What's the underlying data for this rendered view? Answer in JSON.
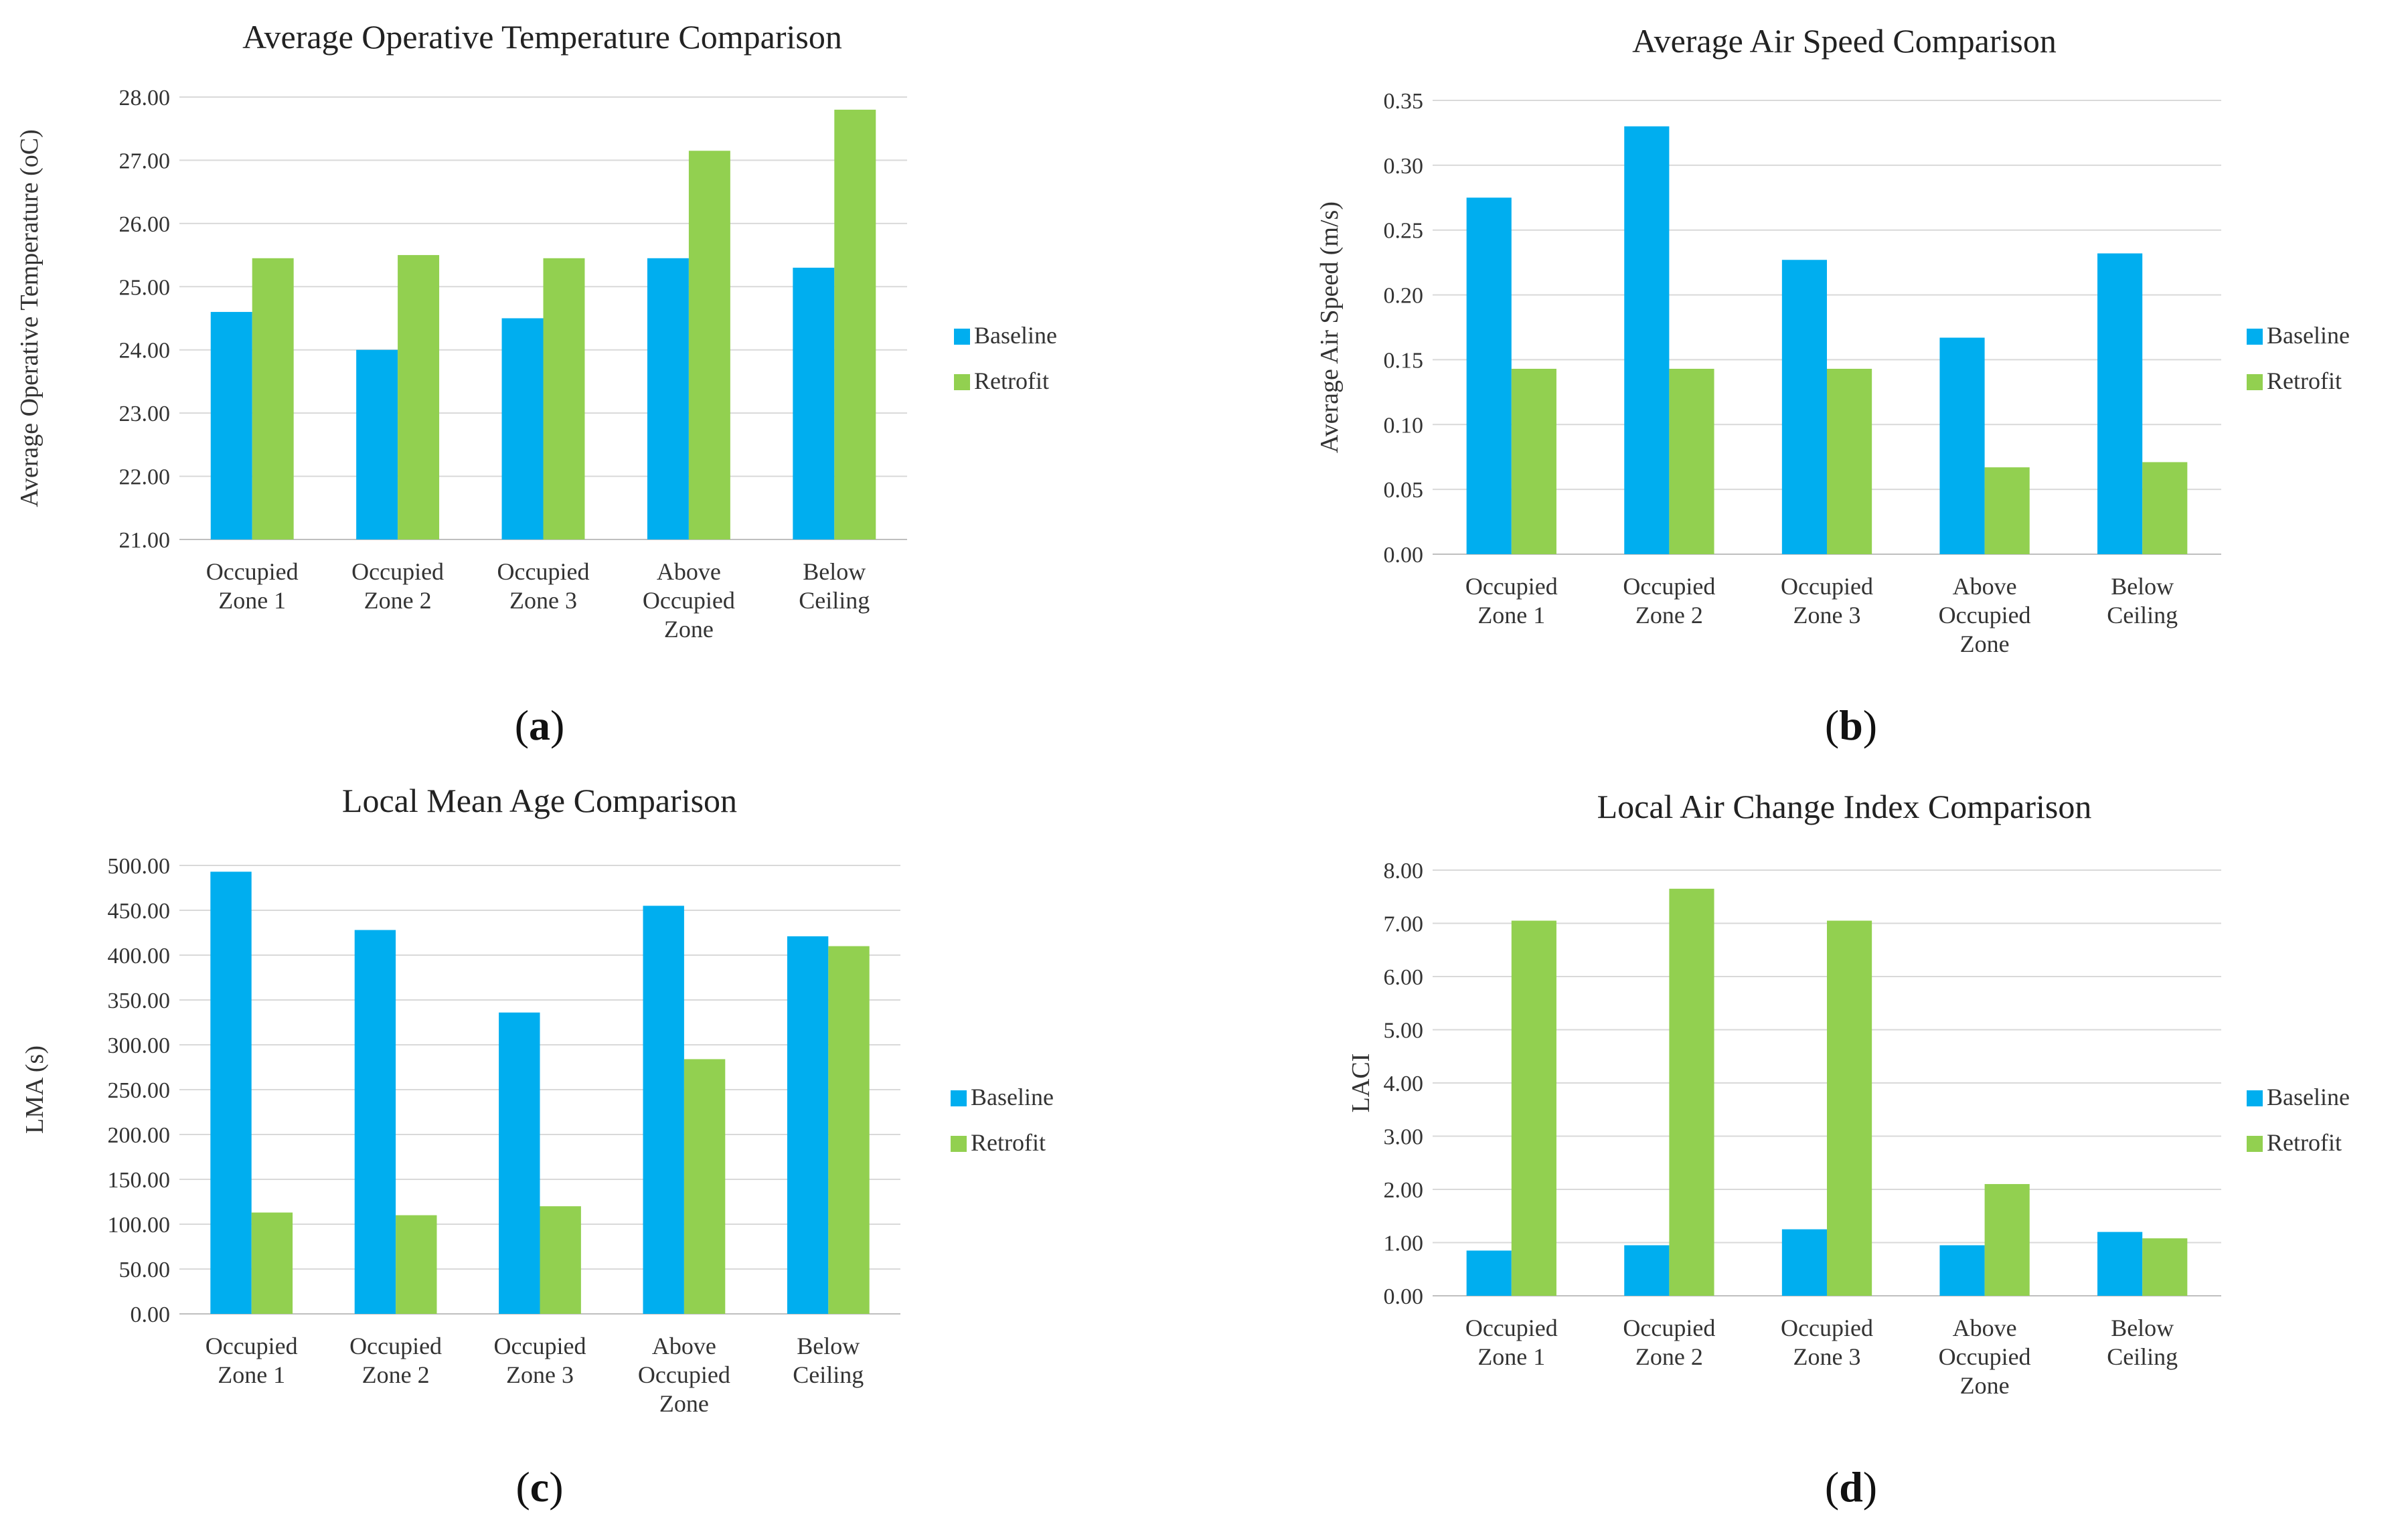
{
  "colors": {
    "baseline": "#00aeef",
    "retrofit": "#92d050"
  },
  "chart_data": [
    {
      "type": "bar",
      "panel_label": "a",
      "title": "Average Operative Temperature Comparison",
      "ylabel": "Average Operative Temperature (oC)",
      "xlabel": "",
      "categories": [
        [
          "Occupied",
          "Zone 1"
        ],
        [
          "Occupied",
          "Zone 2"
        ],
        [
          "Occupied",
          "Zone 3"
        ],
        [
          "Above",
          "Occupied",
          "Zone"
        ],
        [
          "Below",
          "Ceiling"
        ]
      ],
      "ylim": [
        21,
        28
      ],
      "ystep": 1,
      "ydecimals": 2,
      "legend_position": "right",
      "series": [
        {
          "name": "Baseline",
          "values": [
            24.6,
            24.0,
            24.5,
            25.45,
            25.3
          ]
        },
        {
          "name": "Retrofit",
          "values": [
            25.45,
            25.5,
            25.45,
            27.15,
            27.8
          ]
        }
      ]
    },
    {
      "type": "bar",
      "panel_label": "b",
      "title": "Average Air Speed Comparison",
      "ylabel": "Average Air Speed (m/s)",
      "xlabel": "",
      "categories": [
        [
          "Occupied",
          "Zone 1"
        ],
        [
          "Occupied",
          "Zone 2"
        ],
        [
          "Occupied",
          "Zone 3"
        ],
        [
          "Above",
          "Occupied",
          "Zone"
        ],
        [
          "Below",
          "Ceiling"
        ]
      ],
      "ylim": [
        0,
        0.35
      ],
      "ystep": 0.05,
      "ydecimals": 2,
      "legend_position": "right",
      "series": [
        {
          "name": "Baseline",
          "values": [
            0.275,
            0.33,
            0.227,
            0.167,
            0.232
          ]
        },
        {
          "name": "Retrofit",
          "values": [
            0.143,
            0.143,
            0.143,
            0.067,
            0.071
          ]
        }
      ]
    },
    {
      "type": "bar",
      "panel_label": "c",
      "title": "Local Mean Age Comparison",
      "ylabel": "LMA (s)",
      "xlabel": "",
      "categories": [
        [
          "Occupied",
          "Zone 1"
        ],
        [
          "Occupied",
          "Zone 2"
        ],
        [
          "Occupied",
          "Zone 3"
        ],
        [
          "Above",
          "Occupied",
          "Zone"
        ],
        [
          "Below",
          "Ceiling"
        ]
      ],
      "ylim": [
        0,
        500
      ],
      "ystep": 50,
      "ydecimals": 2,
      "legend_position": "right",
      "series": [
        {
          "name": "Baseline",
          "values": [
            493,
            428,
            336,
            455,
            421
          ]
        },
        {
          "name": "Retrofit",
          "values": [
            113,
            110,
            120,
            284,
            410
          ]
        }
      ]
    },
    {
      "type": "bar",
      "panel_label": "d",
      "title": "Local Air Change Index Comparison",
      "ylabel": "LACI",
      "xlabel": "",
      "categories": [
        [
          "Occupied",
          "Zone 1"
        ],
        [
          "Occupied",
          "Zone 2"
        ],
        [
          "Occupied",
          "Zone 3"
        ],
        [
          "Above",
          "Occupied",
          "Zone"
        ],
        [
          "Below",
          "Ceiling"
        ]
      ],
      "ylim": [
        0,
        8
      ],
      "ystep": 1,
      "ydecimals": 2,
      "legend_position": "right",
      "series": [
        {
          "name": "Baseline",
          "values": [
            0.85,
            0.95,
            1.25,
            0.95,
            1.2
          ]
        },
        {
          "name": "Retrofit",
          "values": [
            7.05,
            7.65,
            7.05,
            2.1,
            1.08
          ]
        }
      ]
    }
  ]
}
